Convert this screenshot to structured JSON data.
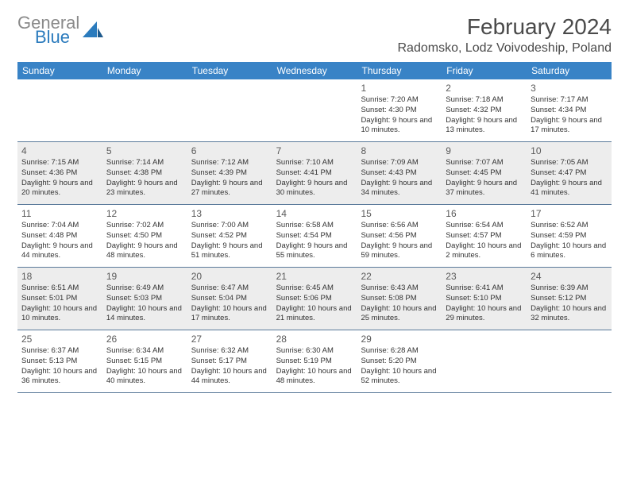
{
  "brand": {
    "part1": "General",
    "part2": "Blue"
  },
  "title": "February 2024",
  "location": "Radomsko, Lodz Voivodeship, Poland",
  "colors": {
    "header_bg": "#3983c6",
    "header_text": "#ffffff",
    "shaded_bg": "#ededed",
    "border": "#5a7a9a",
    "brand_gray": "#8a8a8a",
    "brand_blue": "#2b7bbd"
  },
  "day_headers": [
    "Sunday",
    "Monday",
    "Tuesday",
    "Wednesday",
    "Thursday",
    "Friday",
    "Saturday"
  ],
  "weeks": [
    {
      "shaded": false,
      "days": [
        {
          "num": "",
          "sunrise": "",
          "sunset": "",
          "daylight": ""
        },
        {
          "num": "",
          "sunrise": "",
          "sunset": "",
          "daylight": ""
        },
        {
          "num": "",
          "sunrise": "",
          "sunset": "",
          "daylight": ""
        },
        {
          "num": "",
          "sunrise": "",
          "sunset": "",
          "daylight": ""
        },
        {
          "num": "1",
          "sunrise": "Sunrise: 7:20 AM",
          "sunset": "Sunset: 4:30 PM",
          "daylight": "Daylight: 9 hours and 10 minutes."
        },
        {
          "num": "2",
          "sunrise": "Sunrise: 7:18 AM",
          "sunset": "Sunset: 4:32 PM",
          "daylight": "Daylight: 9 hours and 13 minutes."
        },
        {
          "num": "3",
          "sunrise": "Sunrise: 7:17 AM",
          "sunset": "Sunset: 4:34 PM",
          "daylight": "Daylight: 9 hours and 17 minutes."
        }
      ]
    },
    {
      "shaded": true,
      "days": [
        {
          "num": "4",
          "sunrise": "Sunrise: 7:15 AM",
          "sunset": "Sunset: 4:36 PM",
          "daylight": "Daylight: 9 hours and 20 minutes."
        },
        {
          "num": "5",
          "sunrise": "Sunrise: 7:14 AM",
          "sunset": "Sunset: 4:38 PM",
          "daylight": "Daylight: 9 hours and 23 minutes."
        },
        {
          "num": "6",
          "sunrise": "Sunrise: 7:12 AM",
          "sunset": "Sunset: 4:39 PM",
          "daylight": "Daylight: 9 hours and 27 minutes."
        },
        {
          "num": "7",
          "sunrise": "Sunrise: 7:10 AM",
          "sunset": "Sunset: 4:41 PM",
          "daylight": "Daylight: 9 hours and 30 minutes."
        },
        {
          "num": "8",
          "sunrise": "Sunrise: 7:09 AM",
          "sunset": "Sunset: 4:43 PM",
          "daylight": "Daylight: 9 hours and 34 minutes."
        },
        {
          "num": "9",
          "sunrise": "Sunrise: 7:07 AM",
          "sunset": "Sunset: 4:45 PM",
          "daylight": "Daylight: 9 hours and 37 minutes."
        },
        {
          "num": "10",
          "sunrise": "Sunrise: 7:05 AM",
          "sunset": "Sunset: 4:47 PM",
          "daylight": "Daylight: 9 hours and 41 minutes."
        }
      ]
    },
    {
      "shaded": false,
      "days": [
        {
          "num": "11",
          "sunrise": "Sunrise: 7:04 AM",
          "sunset": "Sunset: 4:48 PM",
          "daylight": "Daylight: 9 hours and 44 minutes."
        },
        {
          "num": "12",
          "sunrise": "Sunrise: 7:02 AM",
          "sunset": "Sunset: 4:50 PM",
          "daylight": "Daylight: 9 hours and 48 minutes."
        },
        {
          "num": "13",
          "sunrise": "Sunrise: 7:00 AM",
          "sunset": "Sunset: 4:52 PM",
          "daylight": "Daylight: 9 hours and 51 minutes."
        },
        {
          "num": "14",
          "sunrise": "Sunrise: 6:58 AM",
          "sunset": "Sunset: 4:54 PM",
          "daylight": "Daylight: 9 hours and 55 minutes."
        },
        {
          "num": "15",
          "sunrise": "Sunrise: 6:56 AM",
          "sunset": "Sunset: 4:56 PM",
          "daylight": "Daylight: 9 hours and 59 minutes."
        },
        {
          "num": "16",
          "sunrise": "Sunrise: 6:54 AM",
          "sunset": "Sunset: 4:57 PM",
          "daylight": "Daylight: 10 hours and 2 minutes."
        },
        {
          "num": "17",
          "sunrise": "Sunrise: 6:52 AM",
          "sunset": "Sunset: 4:59 PM",
          "daylight": "Daylight: 10 hours and 6 minutes."
        }
      ]
    },
    {
      "shaded": true,
      "days": [
        {
          "num": "18",
          "sunrise": "Sunrise: 6:51 AM",
          "sunset": "Sunset: 5:01 PM",
          "daylight": "Daylight: 10 hours and 10 minutes."
        },
        {
          "num": "19",
          "sunrise": "Sunrise: 6:49 AM",
          "sunset": "Sunset: 5:03 PM",
          "daylight": "Daylight: 10 hours and 14 minutes."
        },
        {
          "num": "20",
          "sunrise": "Sunrise: 6:47 AM",
          "sunset": "Sunset: 5:04 PM",
          "daylight": "Daylight: 10 hours and 17 minutes."
        },
        {
          "num": "21",
          "sunrise": "Sunrise: 6:45 AM",
          "sunset": "Sunset: 5:06 PM",
          "daylight": "Daylight: 10 hours and 21 minutes."
        },
        {
          "num": "22",
          "sunrise": "Sunrise: 6:43 AM",
          "sunset": "Sunset: 5:08 PM",
          "daylight": "Daylight: 10 hours and 25 minutes."
        },
        {
          "num": "23",
          "sunrise": "Sunrise: 6:41 AM",
          "sunset": "Sunset: 5:10 PM",
          "daylight": "Daylight: 10 hours and 29 minutes."
        },
        {
          "num": "24",
          "sunrise": "Sunrise: 6:39 AM",
          "sunset": "Sunset: 5:12 PM",
          "daylight": "Daylight: 10 hours and 32 minutes."
        }
      ]
    },
    {
      "shaded": false,
      "days": [
        {
          "num": "25",
          "sunrise": "Sunrise: 6:37 AM",
          "sunset": "Sunset: 5:13 PM",
          "daylight": "Daylight: 10 hours and 36 minutes."
        },
        {
          "num": "26",
          "sunrise": "Sunrise: 6:34 AM",
          "sunset": "Sunset: 5:15 PM",
          "daylight": "Daylight: 10 hours and 40 minutes."
        },
        {
          "num": "27",
          "sunrise": "Sunrise: 6:32 AM",
          "sunset": "Sunset: 5:17 PM",
          "daylight": "Daylight: 10 hours and 44 minutes."
        },
        {
          "num": "28",
          "sunrise": "Sunrise: 6:30 AM",
          "sunset": "Sunset: 5:19 PM",
          "daylight": "Daylight: 10 hours and 48 minutes."
        },
        {
          "num": "29",
          "sunrise": "Sunrise: 6:28 AM",
          "sunset": "Sunset: 5:20 PM",
          "daylight": "Daylight: 10 hours and 52 minutes."
        },
        {
          "num": "",
          "sunrise": "",
          "sunset": "",
          "daylight": ""
        },
        {
          "num": "",
          "sunrise": "",
          "sunset": "",
          "daylight": ""
        }
      ]
    }
  ]
}
